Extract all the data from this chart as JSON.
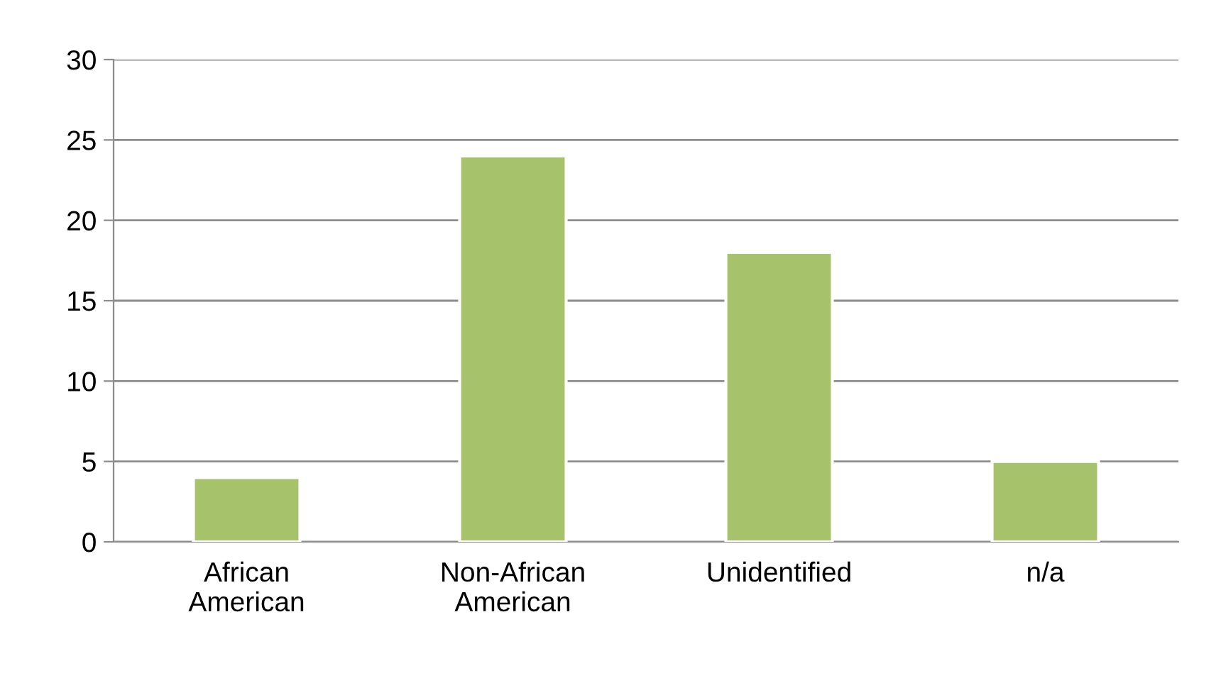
{
  "chart_data": {
    "type": "bar",
    "categories": [
      "African American",
      "Non-African American",
      "Unidentified",
      "n/a"
    ],
    "values": [
      4,
      24,
      18,
      5
    ],
    "color": "#a6c36b",
    "ylim": [
      0,
      30
    ],
    "yticks": [
      0,
      5,
      10,
      15,
      20,
      25,
      30
    ],
    "grid": "y",
    "legend": false
  }
}
